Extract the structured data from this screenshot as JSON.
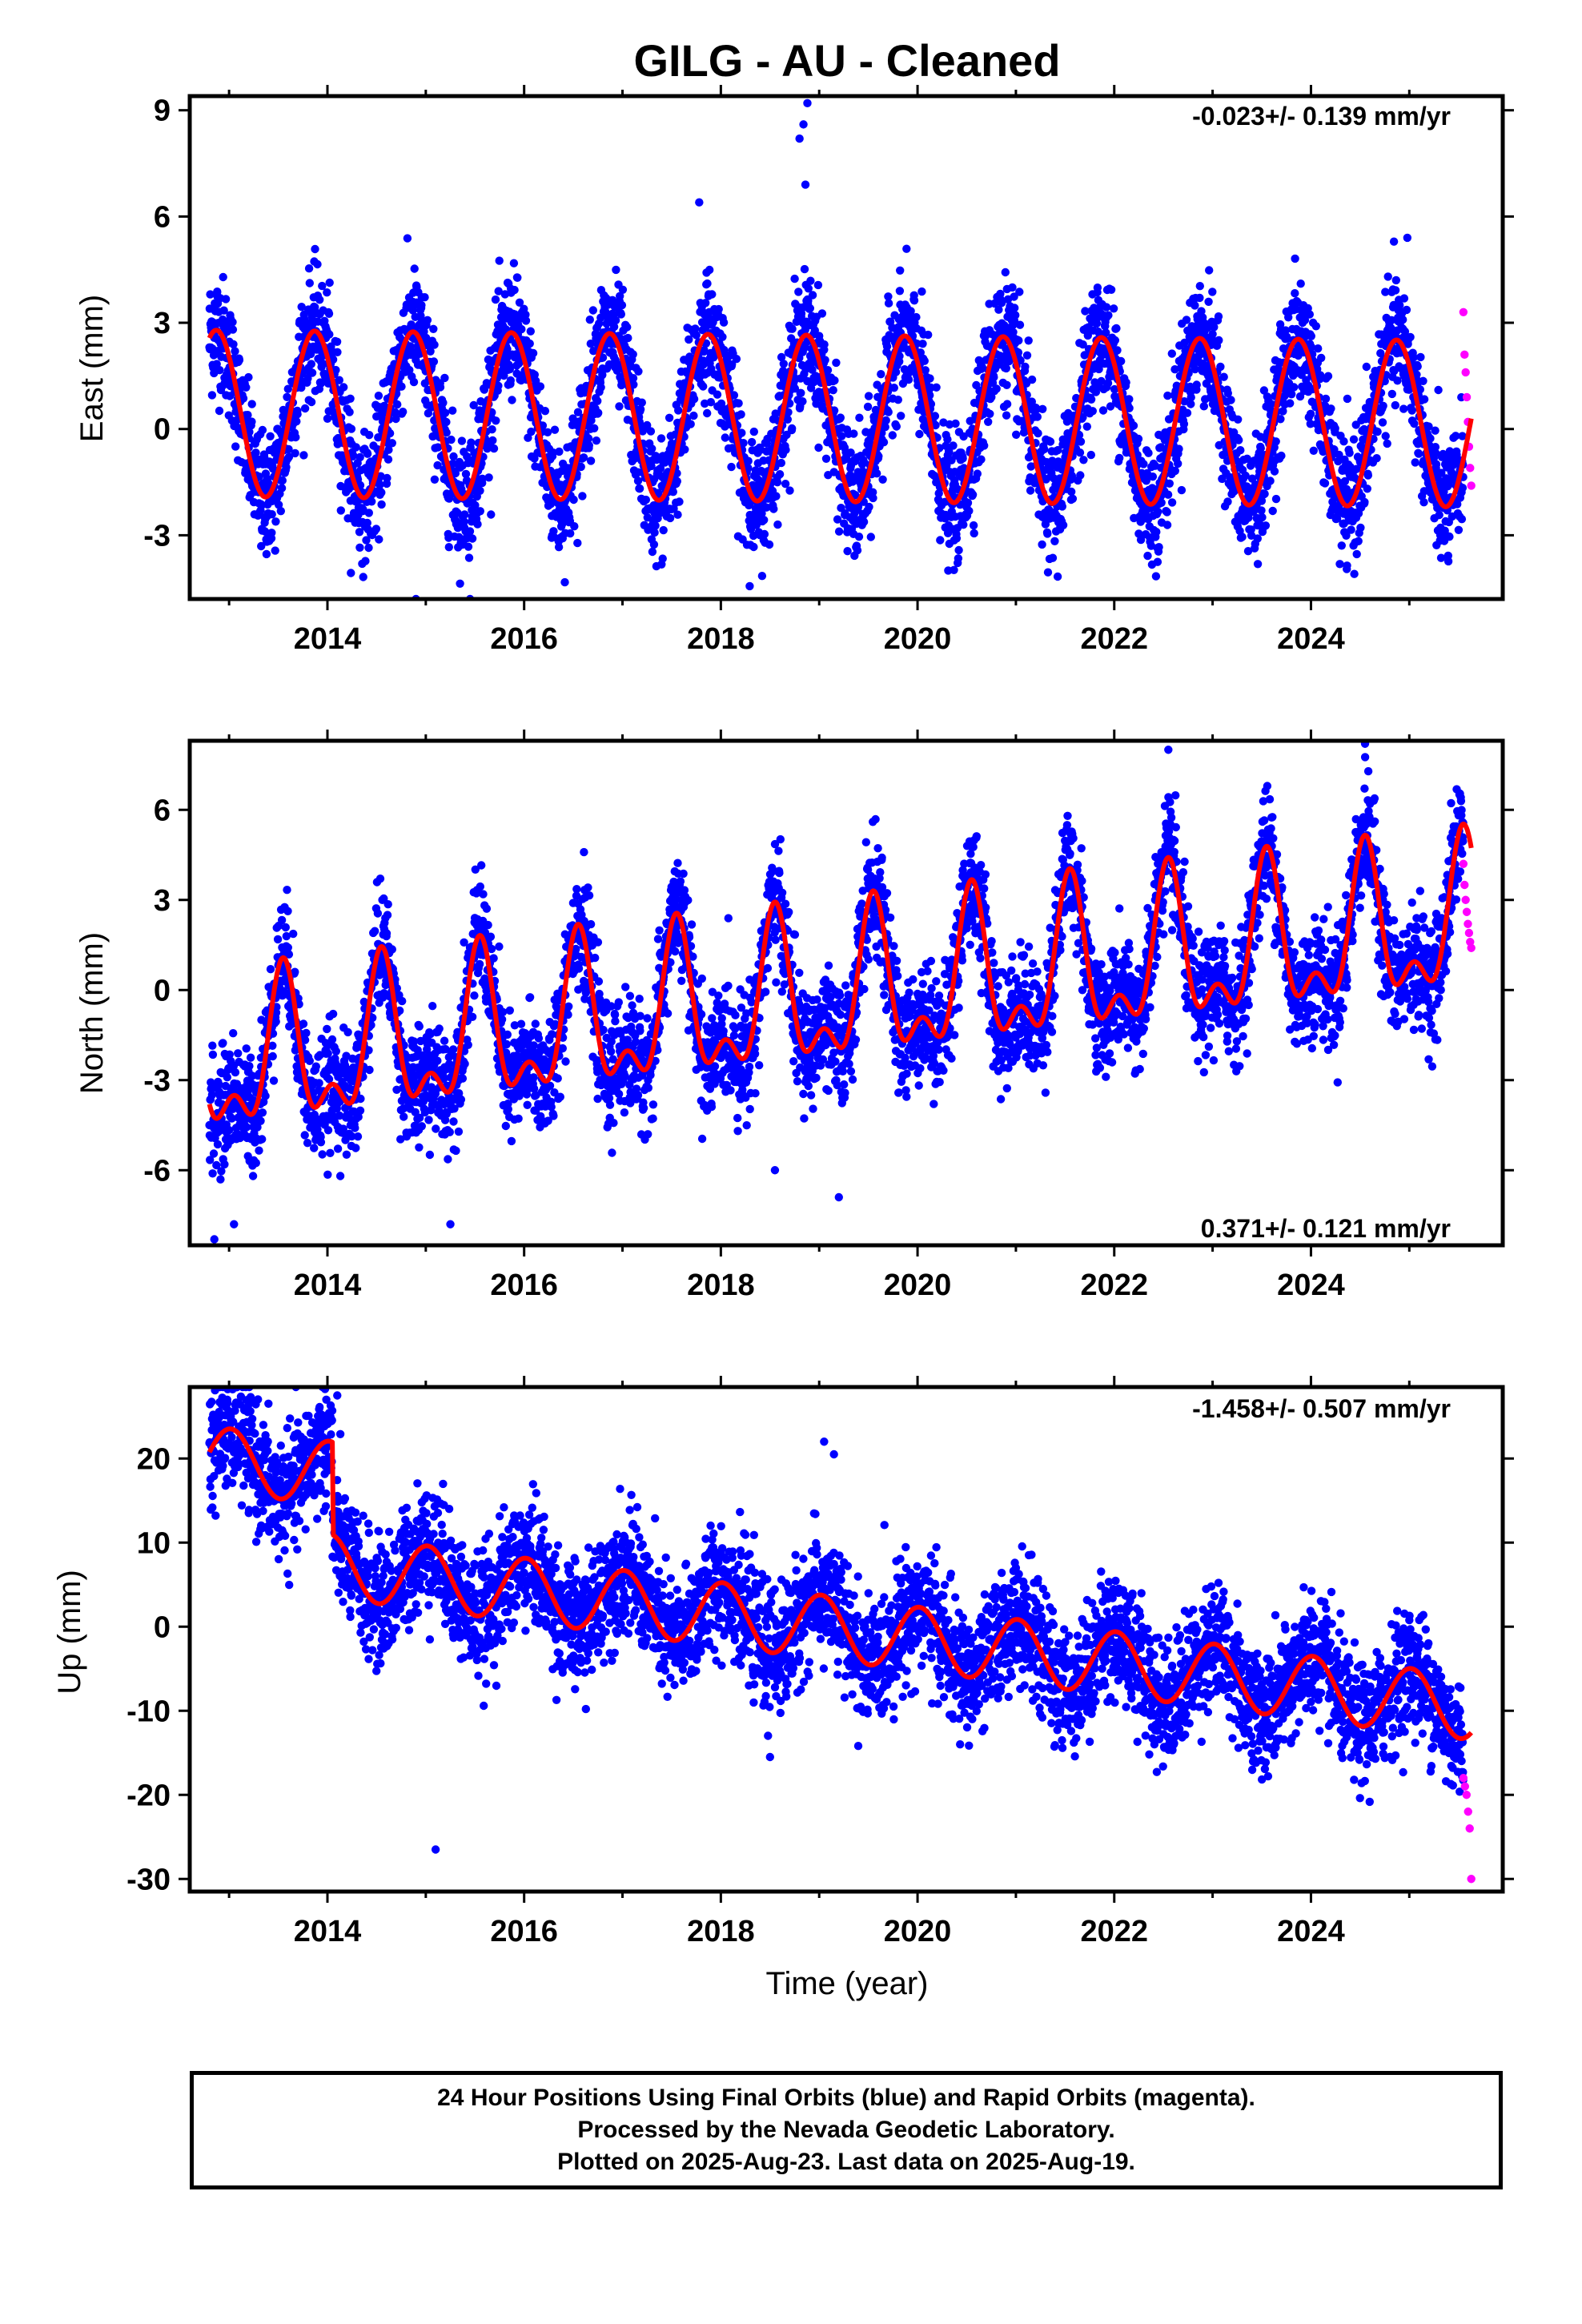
{
  "colors": {
    "final_orbits": "#0000ff",
    "rapid_orbits": "#ff00ff",
    "model_fit": "#ff0000",
    "frame": "#000000"
  },
  "chart_data": {
    "type": "scatter",
    "title": "GILG  - AU - Cleaned",
    "xlabel": "Time (year)",
    "xlim": [
      2012.6,
      2025.95
    ],
    "x_ticks": [
      "2014",
      "2016",
      "2018",
      "2020",
      "2022",
      "2024"
    ],
    "data_span": {
      "start": 2012.8,
      "rapid_start": 2025.55,
      "end": 2025.63
    },
    "panels": [
      {
        "ylabel": "East (mm)",
        "ylim": [
          -4.8,
          9.4
        ],
        "y_ticks": [
          "9",
          "6",
          "3",
          "0",
          "-3"
        ],
        "rate_text": "-0.023+/- 0.139 mm/yr",
        "rate_position": "top-right",
        "model": {
          "trend_mm_per_yr": -0.023,
          "offset_mm": 0.3,
          "annual_amplitude_mm": 2.35,
          "annual_peak_year_fraction": 0.87,
          "semiannual_amplitude_mm": 0.0,
          "semiannual_peak_year_fraction": 0.0
        },
        "scatter_noise_mm": 0.85,
        "series": [
          {
            "name": "Final Orbits",
            "color": "blue"
          },
          {
            "name": "Rapid Orbits",
            "color": "magenta",
            "values": [
              3.3,
              2.1,
              1.6,
              0.9,
              0.2,
              -0.5,
              -1.1,
              -1.6
            ]
          }
        ],
        "outliers": [
          [
            2018.88,
            9.2
          ],
          [
            2018.84,
            8.6
          ],
          [
            2018.8,
            8.2
          ],
          [
            2018.86,
            6.9
          ],
          [
            2017.78,
            6.4
          ],
          [
            2024.98,
            5.4
          ],
          [
            2015.45,
            -5.6
          ],
          [
            2014.9,
            -4.8
          ]
        ]
      },
      {
        "ylabel": "North (mm)",
        "ylim": [
          -8.5,
          8.3
        ],
        "y_ticks": [
          "6",
          "3",
          "0",
          "-3",
          "-6"
        ],
        "rate_text": "0.371+/- 0.121 mm/yr",
        "rate_position": "bottom-right",
        "model": {
          "trend_mm_per_yr": 0.371,
          "offset_mm": -0.3,
          "annual_amplitude_mm": 2.2,
          "annual_peak_year_fraction": 0.55,
          "semiannual_amplitude_mm": 1.2,
          "semiannual_peak_year_fraction": 0.55
        },
        "scatter_noise_mm": 0.95,
        "series": [
          {
            "name": "Final Orbits",
            "color": "blue"
          },
          {
            "name": "Rapid Orbits",
            "color": "magenta",
            "values": [
              4.2,
              3.5,
              3.0,
              2.6,
              2.2,
              1.9,
              1.6,
              1.4
            ]
          }
        ],
        "outliers": [
          [
            2012.85,
            -8.3
          ],
          [
            2013.05,
            -7.8
          ],
          [
            2015.25,
            -7.8
          ],
          [
            2019.2,
            -6.9
          ],
          [
            2018.55,
            -6.0
          ],
          [
            2024.55,
            8.2
          ],
          [
            2022.55,
            8.0
          ]
        ]
      },
      {
        "ylabel": "Up (mm)",
        "ylim": [
          -31.5,
          28.5
        ],
        "y_ticks": [
          "20",
          "10",
          "0",
          "-10",
          "-20",
          "-30"
        ],
        "rate_text": "-1.458+/- 0.507 mm/yr",
        "rate_position": "top-right",
        "model": {
          "trend_mm_per_yr": -1.458,
          "offset_mm": 0.0,
          "annual_amplitude_mm": 3.8,
          "annual_peak_year_fraction": 0.02,
          "semiannual_amplitude_mm": 0.0,
          "semiannual_peak_year_fraction": 0.0
        },
        "pre_step": {
          "until": 2014.05,
          "offset_mm": 11.0
        },
        "scatter_noise_mm": 3.6,
        "series": [
          {
            "name": "Final Orbits",
            "color": "blue"
          },
          {
            "name": "Rapid Orbits",
            "color": "magenta",
            "values": [
              -18.0,
              -19.0,
              -20.0,
              -22.0,
              -24.0,
              -30.0
            ]
          }
        ],
        "outliers": [
          [
            2015.1,
            -26.5
          ],
          [
            2018.5,
            -15.5
          ],
          [
            2019.05,
            22.0
          ],
          [
            2019.15,
            20.5
          ],
          [
            2012.95,
            27.0
          ],
          [
            2014.1,
            27.5
          ]
        ]
      }
    ]
  },
  "caption": {
    "line1": "24 Hour Positions Using Final Orbits (blue) and Rapid Orbits (magenta).",
    "line2": "Processed by the Nevada Geodetic Laboratory.",
    "line3": "Plotted on 2025-Aug-23. Last data on 2025-Aug-19."
  }
}
